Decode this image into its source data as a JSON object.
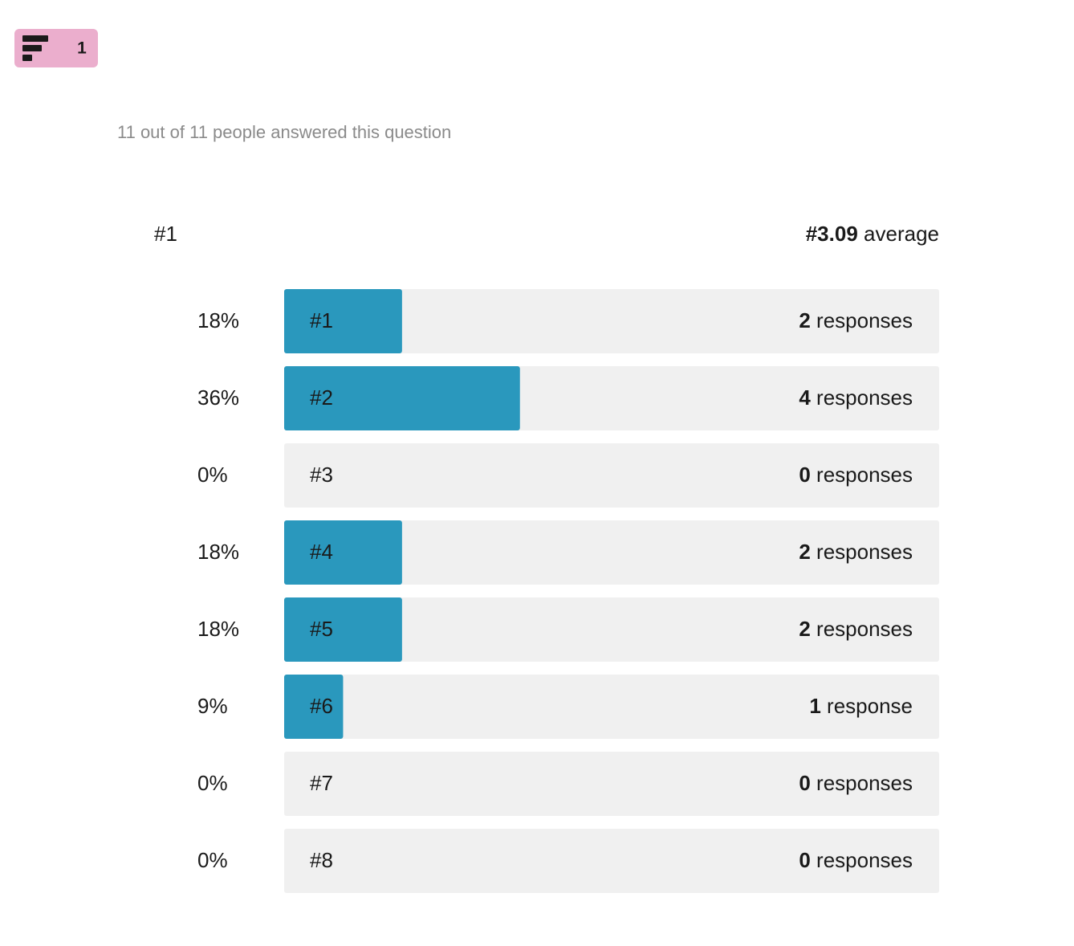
{
  "badge": {
    "number": "1"
  },
  "summary": "11 out of 11 people answered this question",
  "chart_data": {
    "type": "bar",
    "orientation": "horizontal",
    "title": "#1",
    "average_value": "#3.09",
    "average_label": "average",
    "categories": [
      "#1",
      "#2",
      "#3",
      "#4",
      "#5",
      "#6",
      "#7",
      "#8"
    ],
    "values": [
      18,
      36,
      0,
      18,
      18,
      9,
      0,
      0
    ],
    "value_labels": [
      "18%",
      "36%",
      "0%",
      "18%",
      "18%",
      "9%",
      "0%",
      "0%"
    ],
    "counts": [
      2,
      4,
      0,
      2,
      2,
      1,
      0,
      0
    ],
    "count_labels": [
      "responses",
      "responses",
      "responses",
      "responses",
      "responses",
      "response",
      "responses",
      "responses"
    ],
    "xlim": [
      0,
      100
    ],
    "color": "#2a98bd",
    "track_color": "#f0f0f0"
  }
}
